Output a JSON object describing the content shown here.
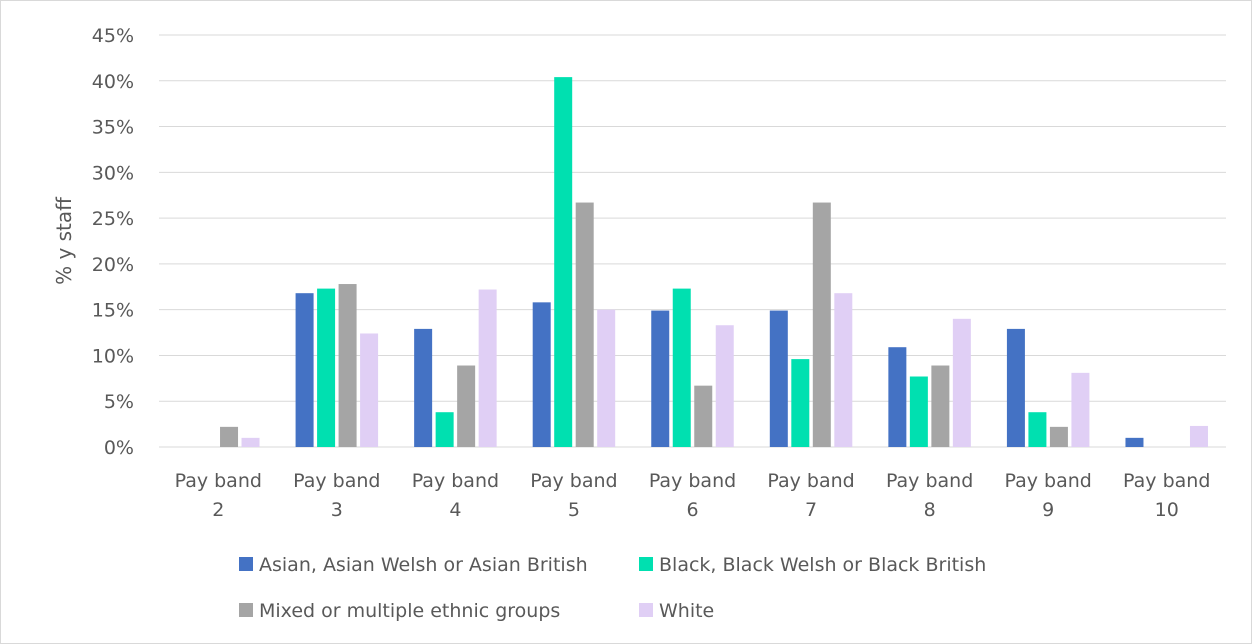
{
  "chart_data": {
    "type": "bar",
    "title": "",
    "xlabel": "",
    "ylabel": "% y staff",
    "ylim": [
      0,
      45
    ],
    "ytick_step": 5,
    "ytick_labels": [
      "0%",
      "5%",
      "10%",
      "15%",
      "20%",
      "25%",
      "30%",
      "35%",
      "40%",
      "45%"
    ],
    "grid": true,
    "legend_position": "bottom",
    "categories": [
      [
        "Pay band",
        "2"
      ],
      [
        "Pay band",
        "3"
      ],
      [
        "Pay band",
        "4"
      ],
      [
        "Pay band",
        "5"
      ],
      [
        "Pay band",
        "6"
      ],
      [
        "Pay band",
        "7"
      ],
      [
        "Pay band",
        "8"
      ],
      [
        "Pay band",
        "9"
      ],
      [
        "Pay band",
        "10"
      ]
    ],
    "series": [
      {
        "name": "Asian, Asian Welsh or Asian British",
        "color": "#4472c4",
        "values": [
          0,
          16.8,
          12.9,
          15.8,
          14.9,
          14.9,
          10.9,
          12.9,
          1.0
        ]
      },
      {
        "name": "Black, Black Welsh or Black British",
        "color": "#00e0b0",
        "values": [
          0,
          17.3,
          3.8,
          40.4,
          17.3,
          9.6,
          7.7,
          3.8,
          0
        ]
      },
      {
        "name": "Mixed or multiple ethnic groups",
        "color": "#a5a5a5",
        "values": [
          2.2,
          17.8,
          8.9,
          26.7,
          6.7,
          26.7,
          8.9,
          2.2,
          0
        ]
      },
      {
        "name": "White",
        "color": "#e0cff5",
        "values": [
          1.0,
          12.4,
          17.2,
          15.0,
          13.3,
          16.8,
          14.0,
          8.1,
          2.3
        ]
      }
    ]
  },
  "colors": {
    "gridline": "#d9d9d9",
    "text": "#595959",
    "border": "#d9d9d9",
    "background": "#ffffff"
  }
}
